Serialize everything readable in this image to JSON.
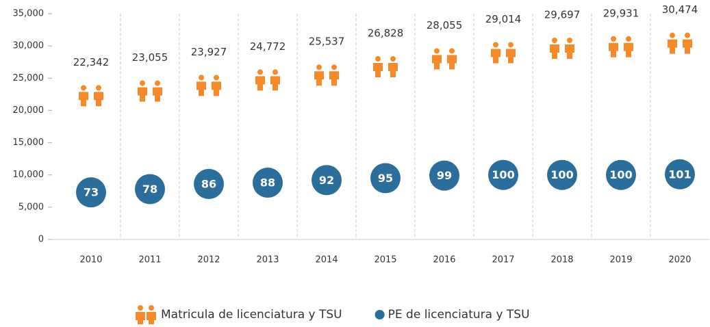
{
  "chart_data": {
    "type": "pictograph",
    "categories": [
      "2010",
      "2011",
      "2012",
      "2013",
      "2014",
      "2015",
      "2016",
      "2017",
      "2018",
      "2019",
      "2020"
    ],
    "series": [
      {
        "name": "Matricula de licenciatura y TSU",
        "color": "#f58a2a",
        "marker": "person",
        "values": [
          22342,
          23055,
          23927,
          24772,
          25537,
          26828,
          28055,
          29014,
          29697,
          29931,
          30474
        ],
        "value_labels": [
          "22,342",
          "23,055",
          "23,927",
          "24,772",
          "25,537",
          "26,828",
          "28,055",
          "29,014",
          "29,697",
          "29,931",
          "30,474"
        ]
      },
      {
        "name": "PE de licenciatura y TSU",
        "color": "#2b6e9c",
        "marker": "circle",
        "axis": "y2",
        "values": [
          73,
          78,
          86,
          88,
          92,
          95,
          99,
          100,
          100,
          100,
          101
        ]
      }
    ],
    "ylim": [
      0,
      35000
    ],
    "yticks": [
      0,
      {
        "value": 5000,
        "label": "5,000"
      },
      {
        "value": 10000,
        "label": "10,000"
      },
      {
        "value": 15000,
        "label": "15,000"
      },
      {
        "value": 20000,
        "label": "20,000"
      },
      {
        "value": 25000,
        "label": "25,000"
      },
      {
        "value": 30000,
        "label": "30,000"
      },
      {
        "value": 35000,
        "label": "35,000"
      }
    ],
    "y2lim": [
      0,
      350
    ],
    "legend": "bottom"
  }
}
